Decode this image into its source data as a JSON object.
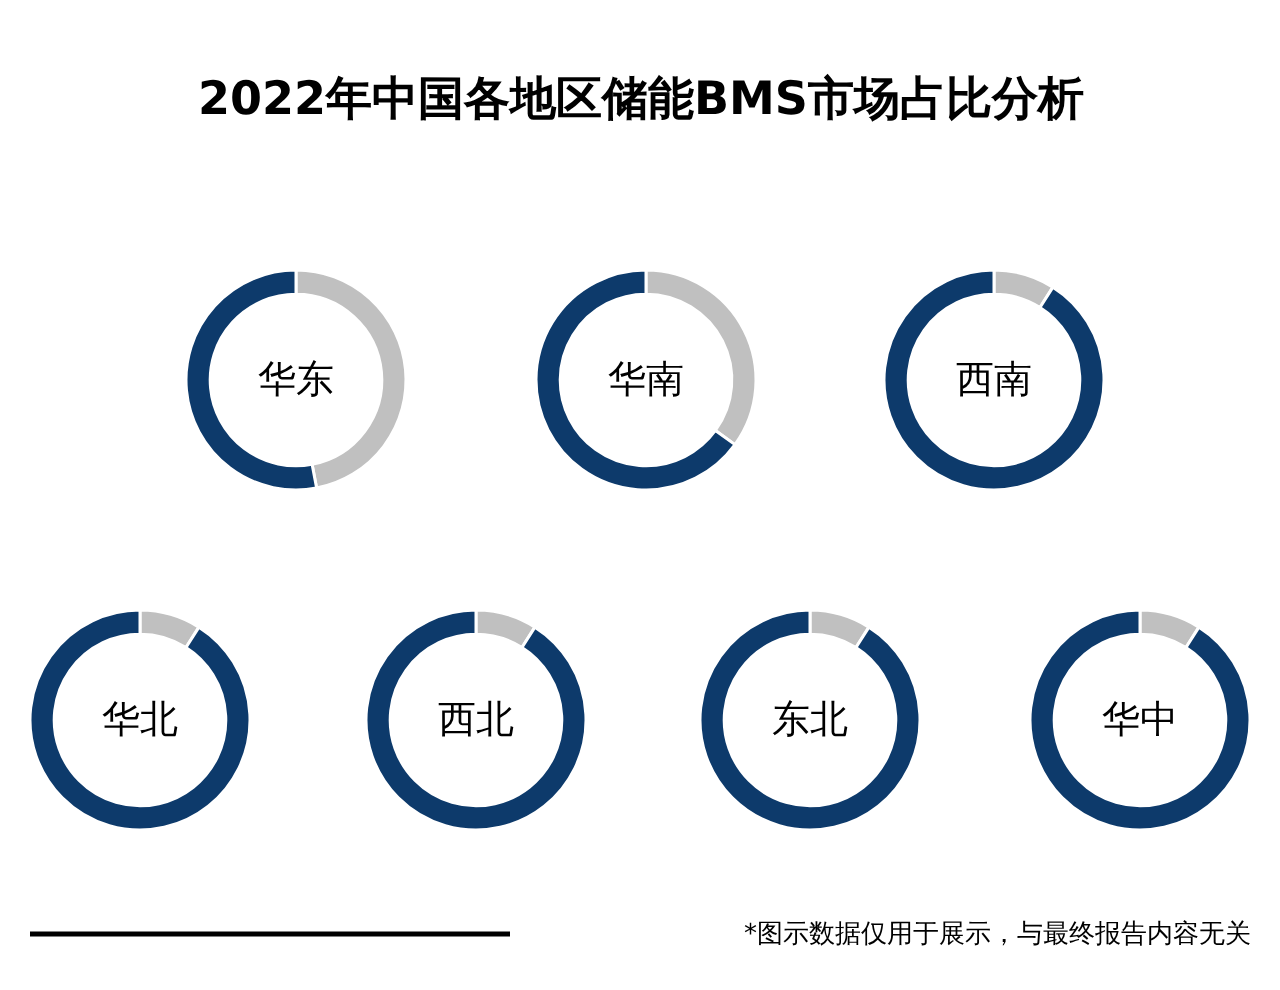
{
  "chart_data": [
    {
      "type": "other",
      "title": "2022年中国各地区储能BMS市场占比分析",
      "annotations": [
        "*图示数据仅用于展示，与最终报告内容无关"
      ]
    },
    {
      "type": "donut",
      "title": "华东",
      "categories": [
        null,
        null
      ],
      "values": [
        47,
        53
      ],
      "colors": [
        "#c0c0c0",
        "#0d3a6b"
      ]
    },
    {
      "type": "donut",
      "title": "华南",
      "categories": [
        null,
        null
      ],
      "values": [
        35,
        65
      ],
      "colors": [
        "#c0c0c0",
        "#0d3a6b"
      ]
    },
    {
      "type": "donut",
      "title": "西南",
      "categories": [
        null,
        null
      ],
      "values": [
        9,
        91
      ],
      "colors": [
        "#c0c0c0",
        "#0d3a6b"
      ]
    },
    {
      "type": "donut",
      "title": "华北",
      "categories": [
        null,
        null
      ],
      "values": [
        9,
        91
      ],
      "colors": [
        "#c0c0c0",
        "#0d3a6b"
      ]
    },
    {
      "type": "donut",
      "title": "西北",
      "categories": [
        null,
        null
      ],
      "values": [
        9,
        91
      ],
      "colors": [
        "#c0c0c0",
        "#0d3a6b"
      ]
    },
    {
      "type": "donut",
      "title": "东北",
      "categories": [
        null,
        null
      ],
      "values": [
        9,
        91
      ],
      "colors": [
        "#c0c0c0",
        "#0d3a6b"
      ]
    },
    {
      "type": "donut",
      "title": "华中",
      "categories": [
        null,
        null
      ],
      "values": [
        9,
        91
      ],
      "colors": [
        "#c0c0c0",
        "#0d3a6b"
      ]
    }
  ]
}
